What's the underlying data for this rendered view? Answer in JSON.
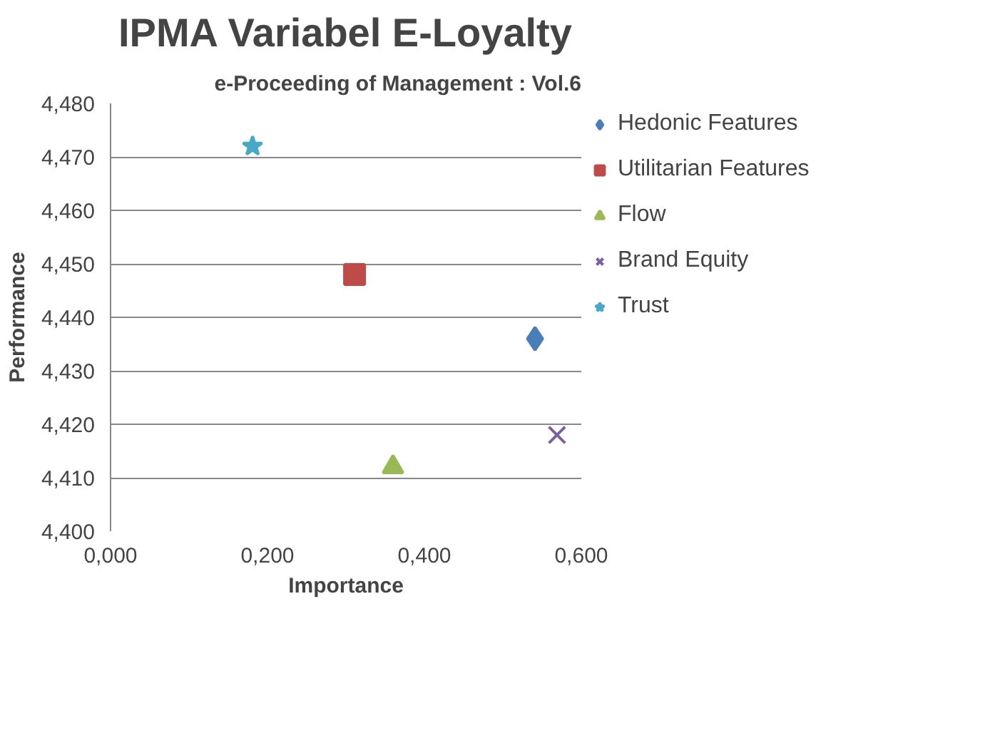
{
  "chart_data": {
    "type": "scatter",
    "title": "IPMA Variabel E-Loyalty",
    "xlabel": "Importance",
    "ylabel": "Performance",
    "annotations": [
      "e-Proceeding of Management : Vol.6"
    ],
    "series": [
      {
        "name": "Hedonic Features",
        "color": "#4a7ebb",
        "marker": "diamond",
        "x": [
          0.541
        ],
        "values": [
          4.436
        ]
      },
      {
        "name": "Utilitarian Features",
        "color": "#be4b48",
        "marker": "square",
        "x": [
          0.311
        ],
        "values": [
          4.448
        ]
      },
      {
        "name": "Flow",
        "color": "#98b954",
        "marker": "triangle",
        "x": [
          0.36
        ],
        "values": [
          4.412
        ]
      },
      {
        "name": "Brand Equity",
        "color": "#7d60a0",
        "marker": "cross",
        "x": [
          0.569
        ],
        "values": [
          4.418
        ]
      },
      {
        "name": "Trust",
        "color": "#46aac5",
        "marker": "star",
        "x": [
          0.181
        ],
        "values": [
          4.472
        ]
      }
    ],
    "xlim": [
      0,
      0.6
    ],
    "ylim": [
      4.4,
      4.48
    ],
    "xticks": [
      {
        "value": 0,
        "label": "0,000"
      },
      {
        "value": 0.2,
        "label": "0,200"
      },
      {
        "value": 0.4,
        "label": "0,400"
      },
      {
        "value": 0.6,
        "label": "0,600"
      }
    ],
    "yticks": [
      {
        "value": 4.4,
        "label": "4,400"
      },
      {
        "value": 4.41,
        "label": "4,410"
      },
      {
        "value": 4.42,
        "label": "4,420"
      },
      {
        "value": 4.43,
        "label": "4,430"
      },
      {
        "value": 4.44,
        "label": "4,440"
      },
      {
        "value": 4.45,
        "label": "4,450"
      },
      {
        "value": 4.46,
        "label": "4,460"
      },
      {
        "value": 4.47,
        "label": "4,470"
      },
      {
        "value": 4.48,
        "label": "4,480"
      }
    ],
    "grid": "y",
    "legend": "right"
  }
}
